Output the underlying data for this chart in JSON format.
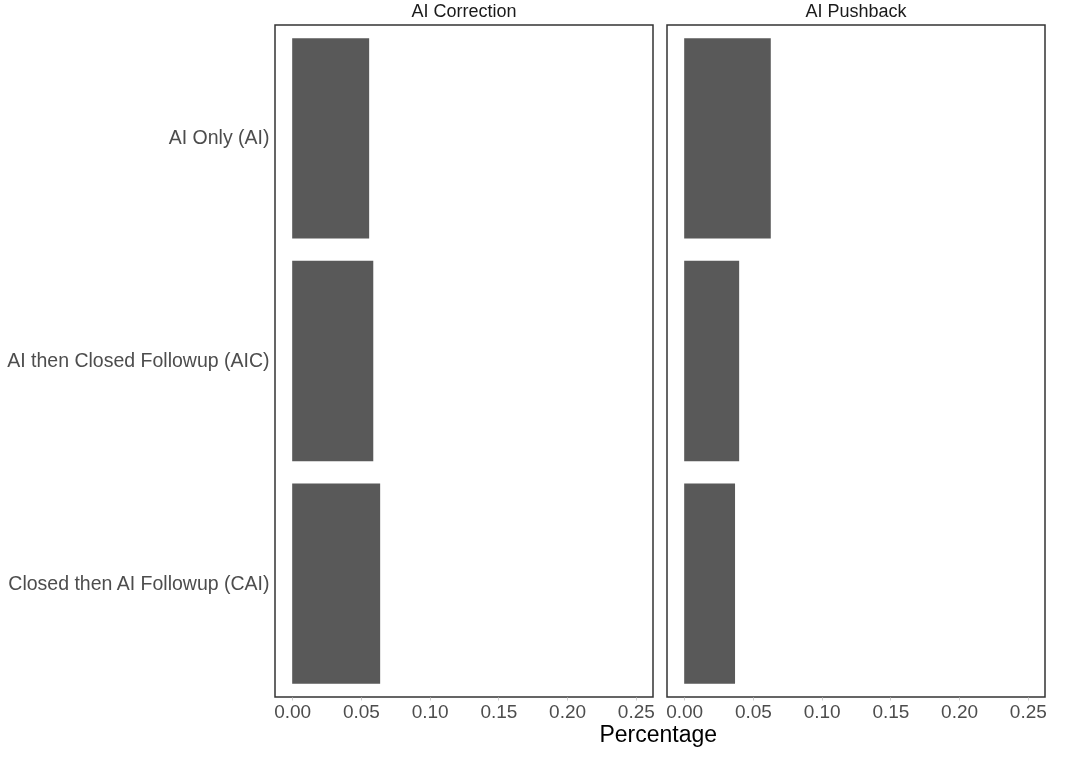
{
  "chart_data": [
    {
      "type": "bar",
      "orientation": "horizontal",
      "title": "AI Correction",
      "xlabel": "Percentage",
      "categories": [
        "AI Only (AI)",
        "AI then Closed Followup (AIC)",
        "Closed then AI Followup (CAI)"
      ],
      "values": [
        0.056,
        0.059,
        0.064
      ],
      "color": "#595959",
      "xlim": [
        -0.0125,
        0.2625
      ],
      "xticks": [
        {
          "value": 0,
          "label": "0.00"
        },
        0.05,
        {
          "value": 0.1,
          "label": "0.10"
        },
        0.15,
        {
          "value": 0.2,
          "label": "0.20"
        },
        0.25
      ],
      "grid": false
    },
    {
      "type": "bar",
      "orientation": "horizontal",
      "title": "AI Pushback",
      "categories": [
        "AI Only (AI)",
        "AI then Closed Followup (AIC)",
        "Closed then AI Followup (CAI)"
      ],
      "values": [
        0.063,
        0.04,
        0.037
      ],
      "color": "#595959",
      "xlim": [
        -0.0125,
        0.2625
      ],
      "xticks": [
        {
          "value": 0,
          "label": "0.00"
        },
        0.05,
        {
          "value": 0.1,
          "label": "0.10"
        },
        0.15,
        {
          "value": 0.2,
          "label": "0.20"
        },
        0.25
      ],
      "grid": false,
      "tick_labels": "x"
    }
  ]
}
